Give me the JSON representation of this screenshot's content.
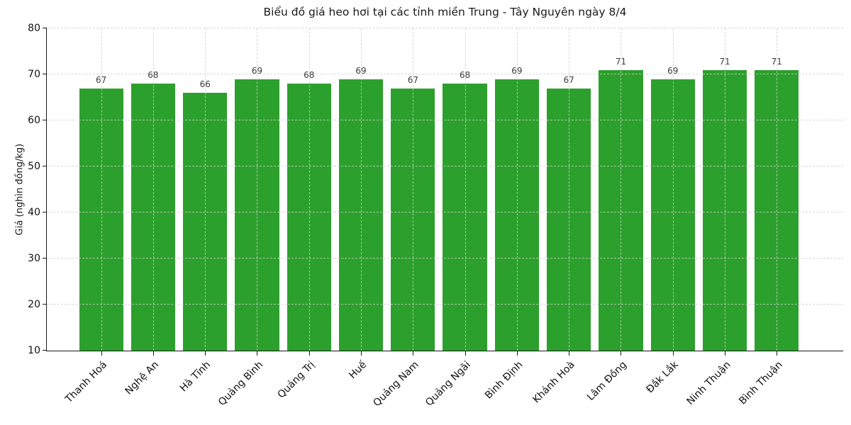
{
  "chart_data": {
    "type": "bar",
    "title": "Biểu đồ giá heo hơi tại các tỉnh miền Trung - Tây Nguyên ngày 8/4",
    "ylabel": "Giá (nghìn đồng/kg)",
    "xlabel": "",
    "categories": [
      "Thanh Hoá",
      "Nghệ An",
      "Hà Tĩnh",
      "Quảng Bình",
      "Quảng Trị",
      "Huế",
      "Quảng Nam",
      "Quảng Ngãi",
      "Bình Định",
      "Khánh Hoà",
      "Lâm Đồng",
      "Đắk Lắk",
      "Ninh Thuận",
      "Bình Thuận"
    ],
    "values": [
      67,
      68,
      66,
      69,
      68,
      69,
      67,
      68,
      69,
      67,
      71,
      69,
      71,
      71
    ],
    "ylim": [
      10,
      80
    ],
    "yticks": [
      10,
      20,
      30,
      40,
      50,
      60,
      70,
      80
    ],
    "grid": "dashed, horizontal and vertical, drawn above bars",
    "legend": "none",
    "bar_color": "#2ca02c",
    "value_label_color": "#3d3d3d",
    "axis_color": "#1a1a1a",
    "grid_color": "#cdcdcd"
  }
}
